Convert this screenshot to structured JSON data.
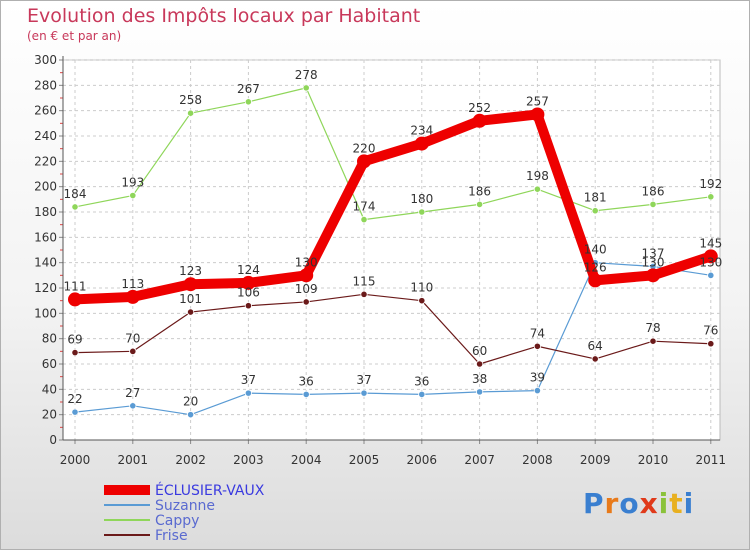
{
  "chart_data": {
    "type": "line",
    "title": "Evolution des Impôts locaux par Habitant",
    "subtitle": "(en € et par an)",
    "xlabel": "",
    "ylabel": "",
    "x": [
      "2000",
      "2001",
      "2002",
      "2003",
      "2004",
      "2005",
      "2006",
      "2007",
      "2008",
      "2009",
      "2010",
      "2011"
    ],
    "ylim": [
      0,
      300
    ],
    "yticks": [
      "0",
      "20",
      "40",
      "60",
      "80",
      "100",
      "120",
      "140",
      "160",
      "180",
      "200",
      "220",
      "240",
      "260",
      "280",
      "300"
    ],
    "grid": true,
    "legend_position": "bottom-left",
    "series": [
      {
        "name": "ÉCLUSIER-VAUX",
        "color": "#ee0000",
        "values": [
          111,
          113,
          123,
          124,
          130,
          220,
          234,
          252,
          257,
          126,
          130,
          145
        ]
      },
      {
        "name": "Suzanne",
        "color": "#5a9bd4",
        "values": [
          22,
          27,
          20,
          37,
          36,
          37,
          36,
          38,
          39,
          140,
          137,
          130
        ]
      },
      {
        "name": "Cappy",
        "color": "#8fd65a",
        "values": [
          184,
          193,
          258,
          267,
          278,
          174,
          180,
          186,
          198,
          181,
          186,
          192
        ]
      },
      {
        "name": "Frise",
        "color": "#6b1a1a",
        "values": [
          69,
          70,
          101,
          106,
          109,
          115,
          110,
          60,
          74,
          64,
          78,
          76
        ]
      }
    ]
  },
  "logo": {
    "text": "Proxiti",
    "letters": [
      "P",
      "r",
      "o",
      "x",
      "i",
      "t",
      "i"
    ],
    "colors": [
      "#3a7fd0",
      "#e87a1a",
      "#3a7fd0",
      "#e03a1a",
      "#8ac23a",
      "#e8b020",
      "#3a7fd0"
    ]
  }
}
